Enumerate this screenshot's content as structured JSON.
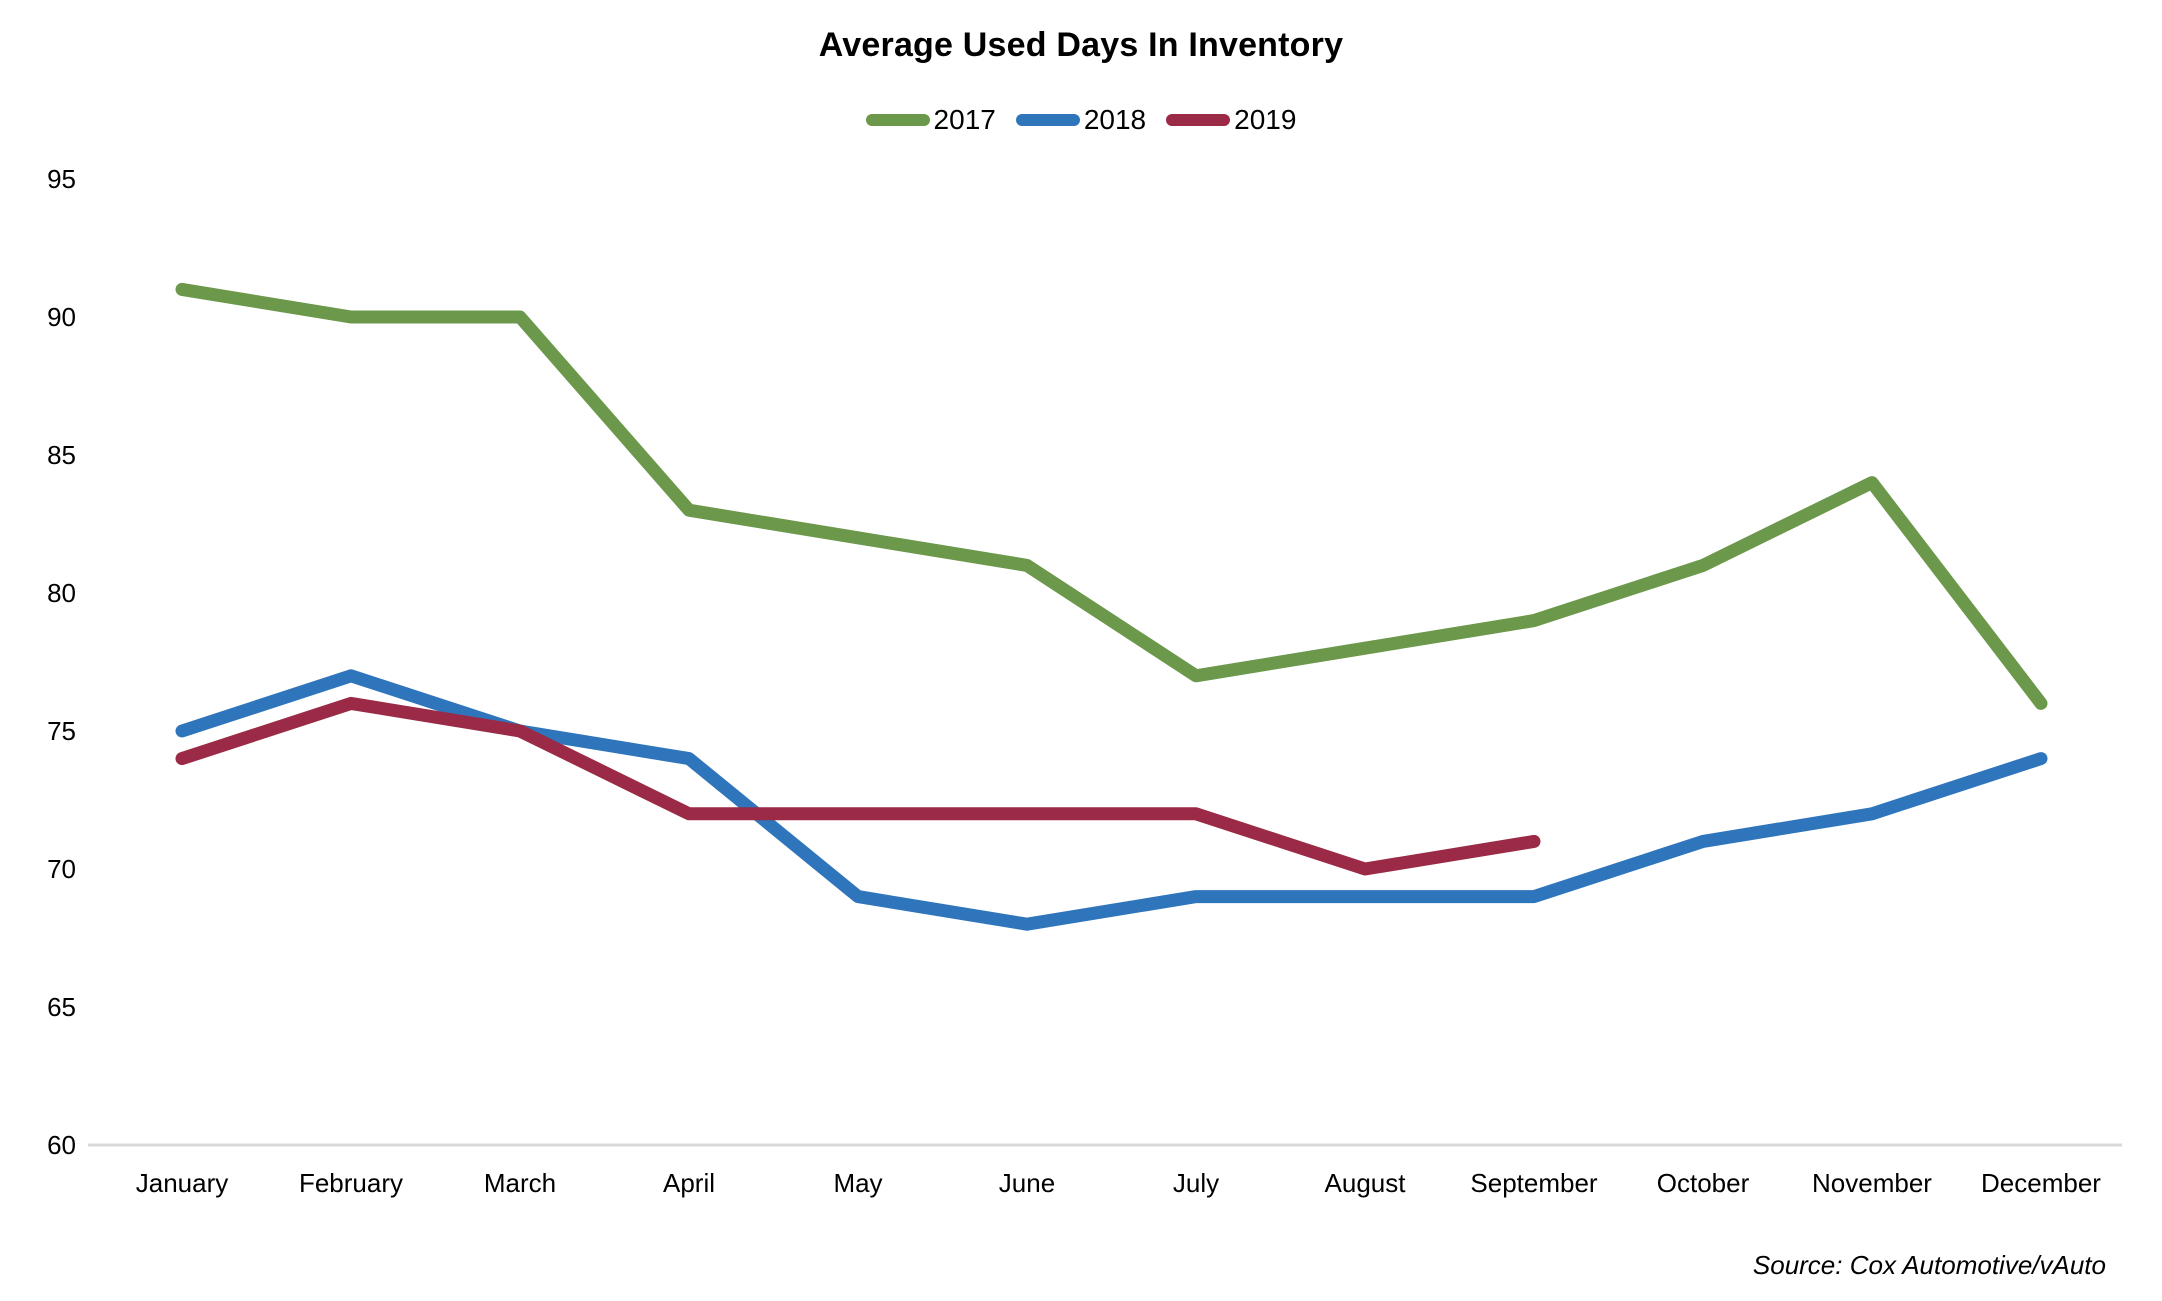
{
  "source": "Source: Cox Automotive/vAuto",
  "chart_data": {
    "type": "line",
    "title": "Average Used Days In Inventory",
    "xlabel": "",
    "ylabel": "",
    "ylim": [
      60,
      95
    ],
    "ytick_step": 5,
    "grid": false,
    "legend_position": "top-center",
    "axis_line_color": "#D8D8D8",
    "label_color": "#000000",
    "categories": [
      "January",
      "February",
      "March",
      "April",
      "May",
      "June",
      "July",
      "August",
      "September",
      "October",
      "November",
      "December"
    ],
    "series": [
      {
        "name": "2017",
        "color": "#6B984A",
        "values": [
          91,
          90,
          90,
          83,
          82,
          81,
          77,
          78,
          79,
          81,
          84,
          76
        ]
      },
      {
        "name": "2018",
        "color": "#2F75BC",
        "values": [
          75,
          77,
          75,
          74,
          69,
          68,
          69,
          69,
          69,
          71,
          72,
          74
        ]
      },
      {
        "name": "2019",
        "color": "#9A2A45",
        "values": [
          74,
          76,
          75,
          72,
          72,
          72,
          72,
          70,
          71
        ]
      }
    ]
  }
}
